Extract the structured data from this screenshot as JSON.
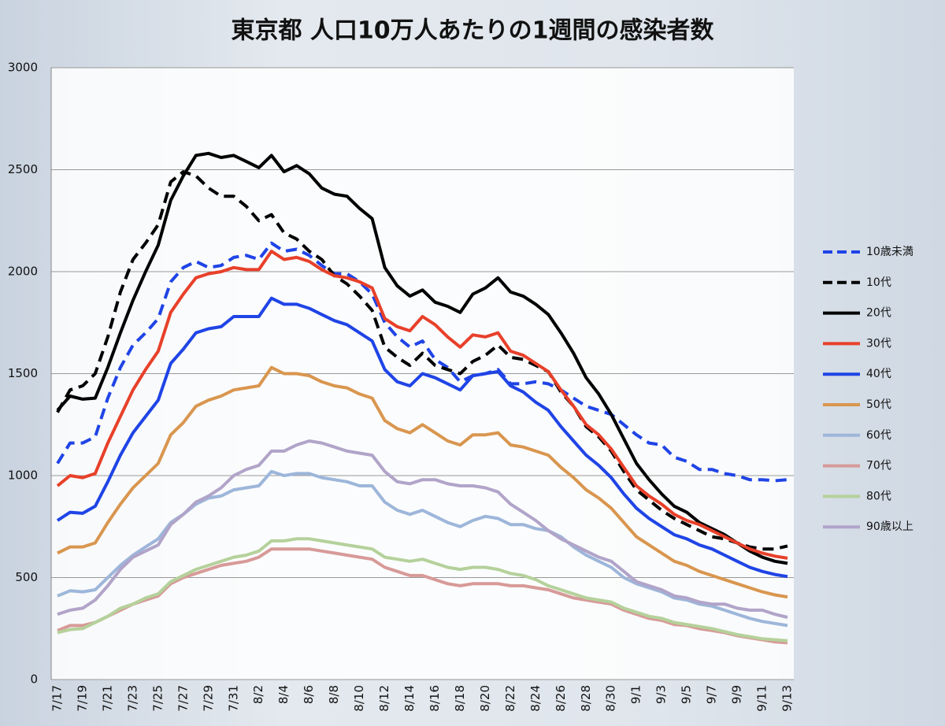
{
  "chart_data": {
    "type": "line",
    "title": "東京都 人口10万人あたりの1週間の感染者数",
    "categories": [
      "7/17",
      null,
      "7/19",
      null,
      "7/21",
      null,
      "7/23",
      null,
      "7/25",
      null,
      "7/27",
      null,
      "7/29",
      null,
      "7/31",
      null,
      "8/2",
      null,
      "8/4",
      null,
      "8/6",
      null,
      "8/8",
      null,
      "8/10",
      null,
      "8/12",
      null,
      "8/14",
      null,
      "8/16",
      null,
      "8/18",
      null,
      "8/20",
      null,
      "8/22",
      null,
      "8/24",
      null,
      "8/26",
      null,
      "8/28",
      null,
      "8/30",
      null,
      "9/1",
      null,
      "9/3",
      null,
      "9/5",
      null,
      "9/7",
      null,
      "9/9",
      null,
      "9/11",
      null,
      "9/13"
    ],
    "ylim": [
      0,
      3000
    ],
    "yticks": [
      0,
      500,
      1000,
      1500,
      2000,
      2500,
      3000
    ],
    "grid": true,
    "legend": "right",
    "series": [
      {
        "name": "10歳未満",
        "color": "#1f44e6",
        "dash": true,
        "values": [
          1060,
          1160,
          1160,
          1190,
          1380,
          1530,
          1640,
          1700,
          1770,
          1950,
          2020,
          2050,
          2020,
          2030,
          2070,
          2080,
          2060,
          2140,
          2100,
          2110,
          2080,
          2030,
          1990,
          1990,
          1950,
          1890,
          1750,
          1680,
          1630,
          1660,
          1570,
          1530,
          1460,
          1490,
          1500,
          1520,
          1450,
          1450,
          1460,
          1450,
          1420,
          1380,
          1340,
          1320,
          1300,
          1250,
          1200,
          1160,
          1150,
          1090,
          1070,
          1030,
          1030,
          1010,
          1000,
          980,
          980,
          975,
          980
        ]
      },
      {
        "name": "10代",
        "color": "#000000",
        "dash": true,
        "values": [
          1310,
          1420,
          1440,
          1500,
          1680,
          1900,
          2060,
          2140,
          2230,
          2440,
          2490,
          2470,
          2410,
          2370,
          2370,
          2320,
          2250,
          2280,
          2190,
          2160,
          2100,
          2060,
          1980,
          1940,
          1880,
          1810,
          1630,
          1580,
          1540,
          1600,
          1540,
          1520,
          1500,
          1560,
          1590,
          1640,
          1580,
          1570,
          1540,
          1510,
          1410,
          1340,
          1240,
          1190,
          1120,
          1020,
          930,
          880,
          830,
          790,
          760,
          730,
          700,
          690,
          670,
          650,
          640,
          640,
          655
        ]
      },
      {
        "name": "20代",
        "color": "#000000",
        "dash": false,
        "values": [
          1320,
          1390,
          1375,
          1380,
          1530,
          1700,
          1860,
          2000,
          2130,
          2350,
          2470,
          2570,
          2580,
          2560,
          2570,
          2540,
          2510,
          2570,
          2490,
          2520,
          2480,
          2410,
          2380,
          2370,
          2310,
          2260,
          2020,
          1930,
          1880,
          1910,
          1850,
          1830,
          1800,
          1890,
          1920,
          1970,
          1900,
          1880,
          1840,
          1790,
          1700,
          1600,
          1480,
          1400,
          1300,
          1180,
          1060,
          980,
          910,
          850,
          820,
          770,
          740,
          710,
          670,
          630,
          600,
          580,
          570
        ]
      },
      {
        "name": "30代",
        "color": "#e8402a",
        "dash": false,
        "values": [
          950,
          1000,
          990,
          1010,
          1160,
          1290,
          1420,
          1520,
          1610,
          1800,
          1890,
          1970,
          1990,
          2000,
          2020,
          2010,
          2010,
          2100,
          2060,
          2070,
          2050,
          2010,
          1980,
          1970,
          1950,
          1920,
          1770,
          1730,
          1710,
          1780,
          1740,
          1680,
          1630,
          1690,
          1680,
          1700,
          1610,
          1590,
          1550,
          1510,
          1420,
          1340,
          1250,
          1200,
          1130,
          1040,
          950,
          900,
          860,
          810,
          780,
          760,
          730,
          700,
          670,
          640,
          620,
          605,
          595
        ]
      },
      {
        "name": "40代",
        "color": "#1f44e6",
        "dash": false,
        "values": [
          780,
          820,
          815,
          850,
          970,
          1100,
          1210,
          1290,
          1370,
          1550,
          1620,
          1700,
          1720,
          1730,
          1780,
          1780,
          1780,
          1870,
          1840,
          1840,
          1820,
          1790,
          1760,
          1740,
          1700,
          1660,
          1520,
          1460,
          1440,
          1500,
          1480,
          1450,
          1420,
          1490,
          1500,
          1510,
          1440,
          1410,
          1360,
          1320,
          1240,
          1170,
          1100,
          1050,
          990,
          910,
          840,
          790,
          750,
          710,
          690,
          660,
          640,
          610,
          580,
          550,
          530,
          515,
          505
        ]
      },
      {
        "name": "50代",
        "color": "#d9964f",
        "dash": false,
        "values": [
          620,
          650,
          650,
          670,
          770,
          860,
          940,
          1000,
          1060,
          1200,
          1260,
          1340,
          1370,
          1390,
          1420,
          1430,
          1440,
          1530,
          1500,
          1500,
          1490,
          1460,
          1440,
          1430,
          1400,
          1380,
          1270,
          1230,
          1210,
          1250,
          1210,
          1170,
          1150,
          1200,
          1200,
          1210,
          1150,
          1140,
          1120,
          1100,
          1040,
          990,
          930,
          890,
          840,
          770,
          700,
          660,
          620,
          580,
          560,
          530,
          510,
          490,
          470,
          450,
          430,
          415,
          405
        ]
      },
      {
        "name": "60代",
        "color": "#9db6da",
        "dash": false,
        "values": [
          410,
          435,
          430,
          440,
          500,
          560,
          610,
          650,
          690,
          770,
          810,
          860,
          890,
          900,
          930,
          940,
          950,
          1020,
          1000,
          1010,
          1010,
          990,
          980,
          970,
          950,
          950,
          870,
          830,
          810,
          830,
          800,
          770,
          750,
          780,
          800,
          790,
          760,
          760,
          740,
          730,
          700,
          650,
          610,
          580,
          550,
          500,
          470,
          450,
          430,
          400,
          390,
          370,
          360,
          340,
          320,
          300,
          285,
          275,
          265
        ]
      },
      {
        "name": "70代",
        "color": "#d79a98",
        "dash": false,
        "values": [
          240,
          265,
          265,
          280,
          310,
          340,
          370,
          390,
          410,
          470,
          500,
          520,
          540,
          560,
          570,
          580,
          600,
          640,
          640,
          640,
          640,
          630,
          620,
          610,
          600,
          590,
          550,
          530,
          510,
          510,
          490,
          470,
          460,
          470,
          470,
          470,
          460,
          460,
          450,
          440,
          420,
          400,
          390,
          380,
          370,
          340,
          320,
          300,
          290,
          270,
          265,
          250,
          240,
          230,
          215,
          205,
          195,
          185,
          180
        ]
      },
      {
        "name": "80代",
        "color": "#b5d19b",
        "dash": false,
        "values": [
          230,
          245,
          250,
          280,
          310,
          350,
          370,
          400,
          420,
          480,
          510,
          540,
          560,
          580,
          600,
          610,
          630,
          680,
          680,
          690,
          690,
          680,
          670,
          660,
          650,
          640,
          600,
          590,
          580,
          590,
          570,
          550,
          540,
          550,
          550,
          540,
          520,
          510,
          490,
          460,
          440,
          420,
          400,
          390,
          380,
          350,
          330,
          310,
          300,
          280,
          270,
          260,
          250,
          235,
          220,
          210,
          200,
          195,
          190
        ]
      },
      {
        "name": "90歳以上",
        "color": "#b1a4c9",
        "dash": false,
        "values": [
          320,
          340,
          350,
          390,
          460,
          540,
          600,
          630,
          660,
          760,
          810,
          870,
          900,
          940,
          1000,
          1030,
          1050,
          1120,
          1120,
          1150,
          1170,
          1160,
          1140,
          1120,
          1110,
          1100,
          1020,
          970,
          960,
          980,
          980,
          960,
          950,
          950,
          940,
          920,
          860,
          820,
          780,
          730,
          690,
          660,
          630,
          600,
          580,
          530,
          480,
          460,
          440,
          410,
          400,
          380,
          370,
          370,
          350,
          340,
          340,
          320,
          305
        ]
      }
    ]
  }
}
